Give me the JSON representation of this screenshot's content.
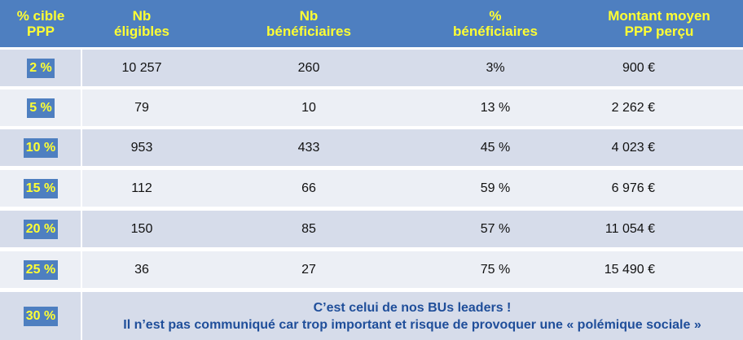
{
  "headers": [
    [
      "% cible",
      "PPP"
    ],
    [
      "Nb",
      "éligibles"
    ],
    [
      "Nb",
      "bénéficiaires"
    ],
    [
      "%",
      "bénéficiaires"
    ],
    [
      "Montant moyen",
      "PPP perçu"
    ]
  ],
  "rows": [
    {
      "target": "2 %",
      "eligible": "10 257",
      "beneficiaries": "260",
      "pct": "3%",
      "amount": "900 €"
    },
    {
      "target": "5 %",
      "eligible": "79",
      "beneficiaries": "10",
      "pct": "13 %",
      "amount": "2 262 €"
    },
    {
      "target": "10 %",
      "eligible": "953",
      "beneficiaries": "433",
      "pct": "45 %",
      "amount": "4 023 €"
    },
    {
      "target": "15 %",
      "eligible": "112",
      "beneficiaries": "66",
      "pct": "59 %",
      "amount": "6 976 €"
    },
    {
      "target": "20 %",
      "eligible": "150",
      "beneficiaries": "85",
      "pct": "57 %",
      "amount": "11 054 €"
    },
    {
      "target": "25 %",
      "eligible": "36",
      "beneficiaries": "27",
      "pct": "75 %",
      "amount": "15 490 €"
    }
  ],
  "last_row": {
    "target": "30 %",
    "line1": "C’est celui de nos BUs leaders !",
    "line2": "Il n’est pas communiqué car trop important et risque de provoquer une « polémique sociale »"
  },
  "colors": {
    "header_bg": "#4e7fc0",
    "header_text": "#ffff33",
    "row_band_dark": "#d6dcea",
    "row_band_light": "#eceff5",
    "message_text": "#1f4e9a"
  }
}
